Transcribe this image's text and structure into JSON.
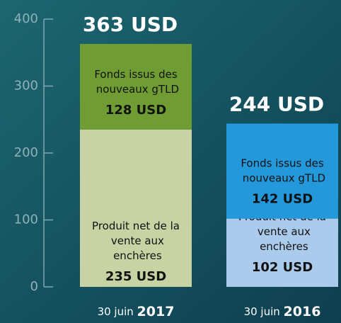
{
  "chart_data": {
    "type": "stacked-bar",
    "categories": [
      "30 juin 2017",
      "30 juin 2016"
    ],
    "total_labels": [
      "363 USD",
      "244 USD"
    ],
    "series": [
      {
        "name": "Produit net de la vente aux enchères",
        "colors": [
          "#c8d3a4",
          "#abcbec"
        ],
        "values": [
          235,
          102
        ],
        "value_labels": [
          "235 USD",
          "102 USD"
        ]
      },
      {
        "name": "Fonds issus des nouveaux gTLD",
        "colors": [
          "#6f9c33",
          "#2398da"
        ],
        "values": [
          128,
          142
        ],
        "value_labels": [
          "128 USD",
          "142 USD"
        ]
      }
    ],
    "ylim": [
      0,
      400
    ],
    "yticks": [
      0,
      100,
      200,
      300,
      400
    ]
  }
}
